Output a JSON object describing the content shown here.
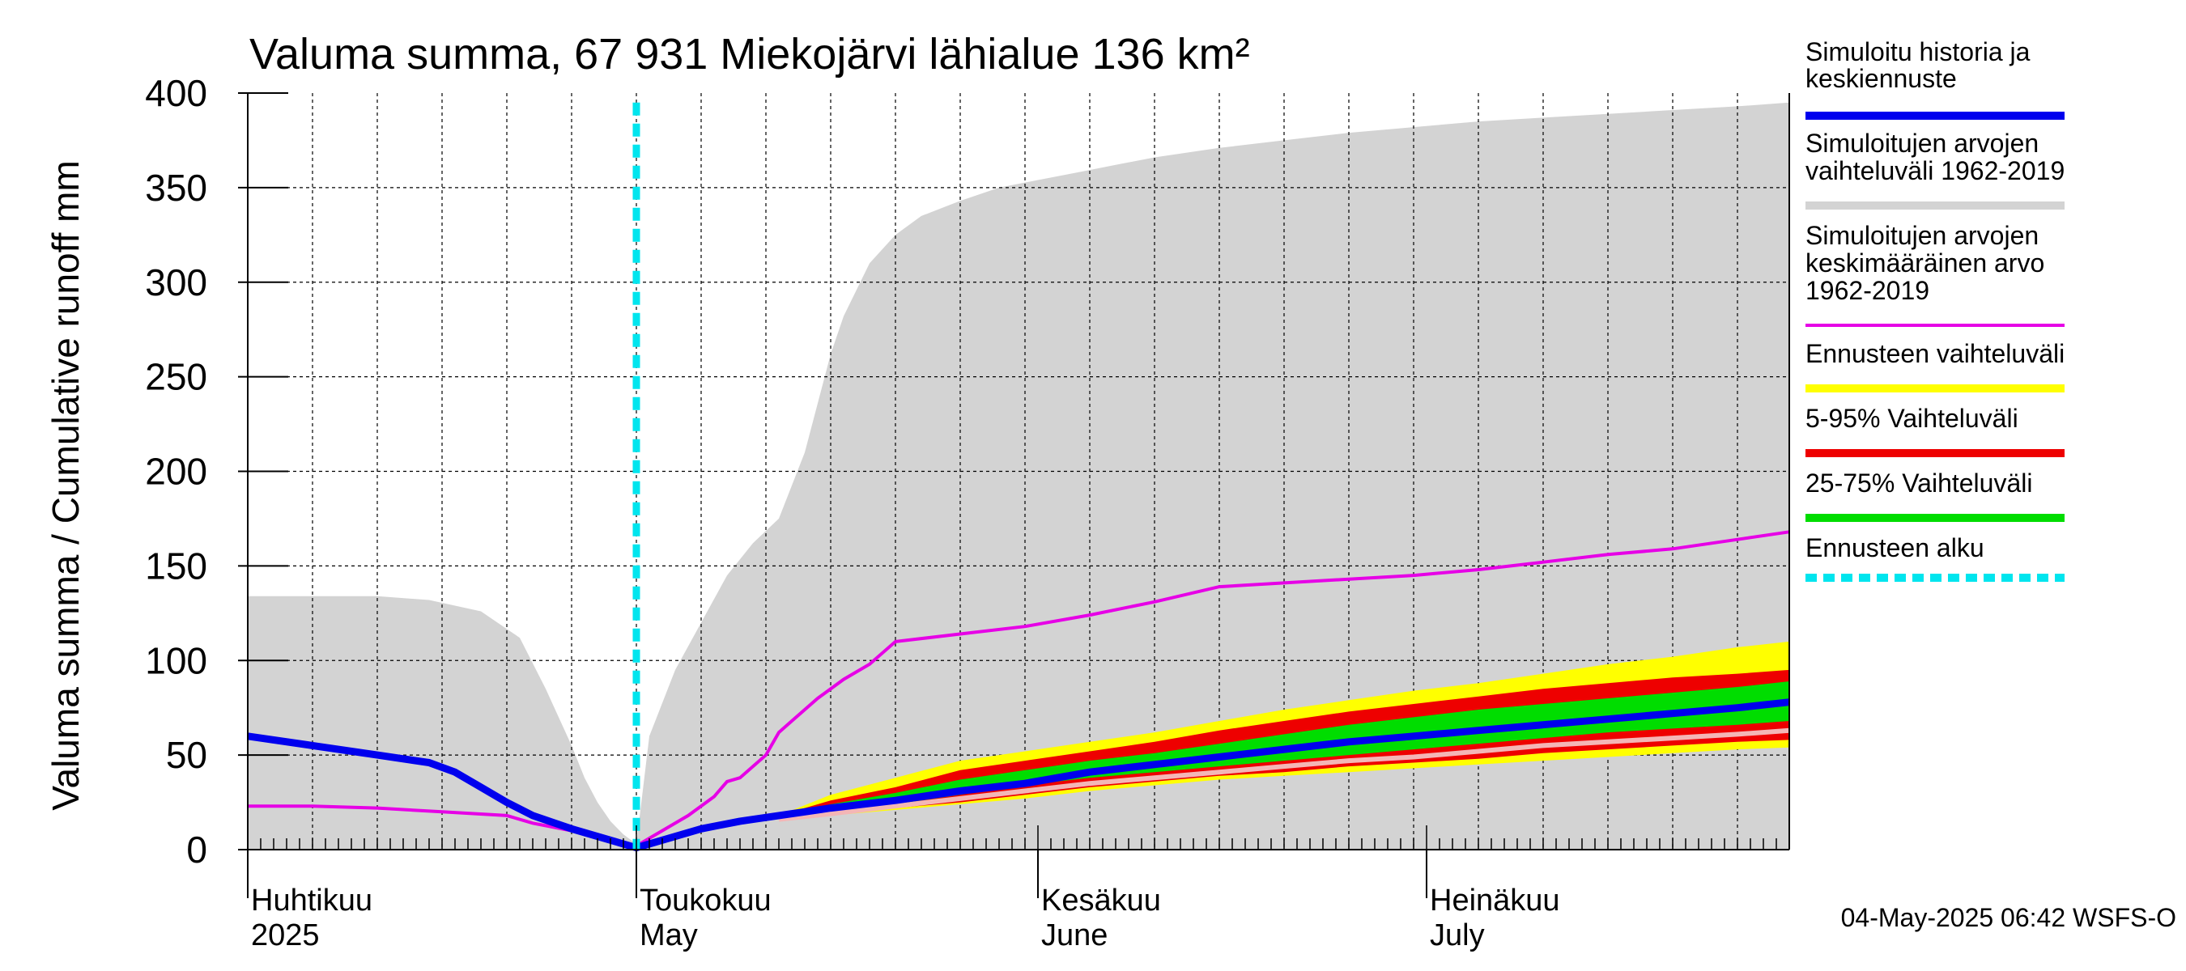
{
  "chart_data": {
    "type": "area",
    "title": "Valuma summa, 67 931 Miekojärvi lähialue 136 km²",
    "ylabel": "Valuma summa / Cumulative runoff    mm",
    "ylim": [
      0,
      400
    ],
    "yticks": [
      "0",
      "50",
      "100",
      "150",
      "200",
      "250",
      "300",
      "350",
      "400"
    ],
    "xlim": [
      0,
      119
    ],
    "grid": true,
    "legend_position": "right",
    "months": [
      {
        "x": 0,
        "label1": "Huhtikuu",
        "label2": "2025"
      },
      {
        "x": 30,
        "label1": "Toukokuu",
        "label2": "May"
      },
      {
        "x": 61,
        "label1": "Kesäkuu",
        "label2": "June"
      },
      {
        "x": 91,
        "label1": "Heinäkuu",
        "label2": "July"
      }
    ],
    "forecast_start_x": 30,
    "series": {
      "hist_range_upper": {
        "x": [
          0,
          10,
          14,
          18,
          21,
          23,
          25,
          26,
          27,
          28,
          29,
          30,
          31,
          33,
          35,
          37,
          39,
          41,
          43,
          45,
          46,
          48,
          50,
          52,
          55,
          58,
          61,
          64,
          67,
          70,
          75,
          80,
          85,
          90,
          95,
          100,
          105,
          110,
          115,
          119
        ],
        "y": [
          134,
          134,
          132,
          126,
          112,
          85,
          55,
          38,
          25,
          15,
          8,
          3,
          60,
          95,
          120,
          145,
          162,
          175,
          210,
          262,
          282,
          310,
          325,
          335,
          343,
          350,
          354,
          358,
          362,
          366,
          371,
          375,
          379,
          382,
          385,
          387,
          389,
          391,
          393,
          395
        ]
      },
      "hist_range_lower": {
        "x": [
          0,
          119
        ],
        "y": [
          0,
          0
        ]
      },
      "mean": {
        "x": [
          0,
          5,
          10,
          15,
          20,
          22,
          25,
          28,
          30,
          32,
          34,
          36,
          37,
          38,
          40,
          41,
          42,
          44,
          46,
          48,
          50,
          55,
          60,
          65,
          70,
          75,
          80,
          85,
          90,
          95,
          100,
          105,
          110,
          115,
          119
        ],
        "y": [
          23,
          23,
          22,
          20,
          18,
          14,
          10,
          5,
          2,
          10,
          18,
          28,
          36,
          38,
          50,
          62,
          68,
          80,
          90,
          98,
          110,
          114,
          118,
          124,
          131,
          139,
          141,
          143,
          145,
          148,
          152,
          156,
          159,
          164,
          168
        ]
      },
      "simulated": {
        "x": [
          0,
          5,
          10,
          14,
          16,
          18,
          20,
          22,
          25,
          28,
          30,
          32,
          35,
          38,
          41,
          45,
          50,
          55,
          60,
          65,
          70,
          75,
          80,
          85,
          90,
          95,
          100,
          105,
          110,
          115,
          119
        ],
        "y": [
          60,
          55,
          50,
          46,
          41,
          33,
          25,
          18,
          11,
          5,
          1,
          5,
          11,
          15,
          18,
          22,
          26,
          31,
          35,
          41,
          45,
          49,
          53,
          57,
          60,
          63,
          66,
          69,
          72,
          75,
          78
        ]
      },
      "band_x": [
        41,
        45,
        50,
        55,
        60,
        65,
        70,
        75,
        80,
        85,
        90,
        95,
        100,
        105,
        110,
        115,
        119
      ],
      "ens_max": [
        18,
        29,
        38,
        47,
        52,
        57,
        62,
        68,
        74,
        79,
        84,
        88,
        93,
        98,
        102,
        107,
        110
      ],
      "ens_min": [
        16,
        18,
        21,
        24,
        27,
        31,
        34,
        37,
        39,
        41,
        43,
        45,
        47,
        49,
        51,
        53,
        54
      ],
      "p95": [
        18,
        26,
        33,
        42,
        47,
        52,
        57,
        63,
        68,
        73,
        77,
        81,
        85,
        88,
        91,
        93,
        95
      ],
      "p5": [
        16,
        19,
        22,
        25,
        29,
        33,
        36,
        39,
        41,
        44,
        46,
        48,
        51,
        53,
        55,
        57,
        58
      ],
      "p75": [
        18,
        24,
        30,
        37,
        42,
        47,
        51,
        56,
        61,
        66,
        70,
        74,
        77,
        80,
        83,
        86,
        89
      ],
      "p25": [
        16,
        20,
        24,
        29,
        34,
        38,
        41,
        44,
        47,
        50,
        53,
        56,
        59,
        62,
        64,
        66,
        68
      ],
      "lowest": {
        "x": [
          41,
          45,
          50,
          55,
          60,
          65,
          70,
          75,
          80,
          85,
          90,
          95,
          100,
          105,
          110,
          115,
          119
        ],
        "y": [
          16,
          19,
          23,
          27,
          31,
          35,
          38,
          41,
          44,
          47,
          49,
          52,
          55,
          57,
          59,
          61,
          63
        ]
      }
    },
    "colors": {
      "hist_range": "#d3d3d3",
      "mean": "#e600e6",
      "simulated": "#0000ee",
      "ens_range": "#ffff00",
      "p5_95": "#ee0000",
      "p25_75": "#00dd00",
      "forecast_start": "#00e5ee",
      "lowest": "#f4b6b6"
    }
  },
  "legend": [
    {
      "lines": [
        "Simuloitu historia ja",
        "keskiennuste"
      ],
      "color": "#0000ee",
      "style": "solid"
    },
    {
      "lines": [
        "Simuloitujen arvojen",
        "vaihteluväli 1962-2019"
      ],
      "color": "#d3d3d3",
      "style": "solid"
    },
    {
      "lines": [
        "Simuloitujen arvojen",
        "keskimääräinen arvo",
        "   1962-2019"
      ],
      "color": "#e600e6",
      "style": "thin"
    },
    {
      "lines": [
        "Ennusteen vaihteluväli"
      ],
      "color": "#ffff00",
      "style": "solid"
    },
    {
      "lines": [
        "5-95% Vaihteluväli"
      ],
      "color": "#ee0000",
      "style": "solid"
    },
    {
      "lines": [
        "25-75% Vaihteluväli"
      ],
      "color": "#00dd00",
      "style": "solid"
    },
    {
      "lines": [
        "Ennusteen alku"
      ],
      "color": "#00e5ee",
      "style": "dashed"
    }
  ],
  "footer": "04-May-2025 06:42 WSFS-O"
}
